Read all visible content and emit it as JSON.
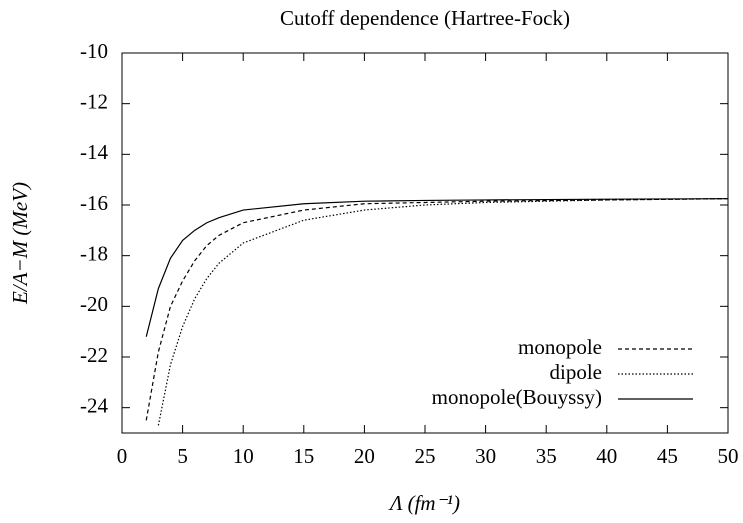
{
  "chart_data": {
    "type": "line",
    "title": "Cutoff dependence (Hartree-Fock)",
    "x_label": "Λ (fm⁻¹)",
    "y_label": "E/A−M (MeV)",
    "x": [
      2,
      3,
      4,
      5,
      6,
      7,
      8,
      10,
      15,
      20,
      25,
      30,
      40,
      50
    ],
    "series": [
      {
        "name": "monopole",
        "color": "#000000",
        "dash": "4,3",
        "values": [
          -24.5,
          -21.8,
          -20.0,
          -19.0,
          -18.2,
          -17.6,
          -17.2,
          -16.7,
          -16.2,
          -15.95,
          -15.9,
          -15.85,
          -15.8,
          -15.75
        ]
      },
      {
        "name": "dipole",
        "color": "#000000",
        "dash": "1.5,2",
        "values": [
          null,
          -24.7,
          -22.3,
          -20.8,
          -19.7,
          -18.9,
          -18.3,
          -17.5,
          -16.6,
          -16.2,
          -16.0,
          -15.9,
          -15.8,
          -15.75
        ]
      },
      {
        "name": "monopole(Bouyssy)",
        "color": "#000000",
        "dash": "none",
        "values": [
          -21.2,
          -19.3,
          -18.1,
          -17.4,
          -17.0,
          -16.7,
          -16.5,
          -16.2,
          -15.95,
          -15.85,
          -15.82,
          -15.8,
          -15.77,
          -15.75
        ]
      }
    ],
    "xlim": [
      0,
      50
    ],
    "xticks": [
      0,
      5,
      10,
      15,
      20,
      25,
      30,
      35,
      40,
      45,
      50
    ],
    "ylim": [
      -25,
      -10
    ],
    "yticks": [
      -10,
      -12,
      -14,
      -16,
      -18,
      -20,
      -22,
      -24
    ],
    "legend": "lower right"
  }
}
